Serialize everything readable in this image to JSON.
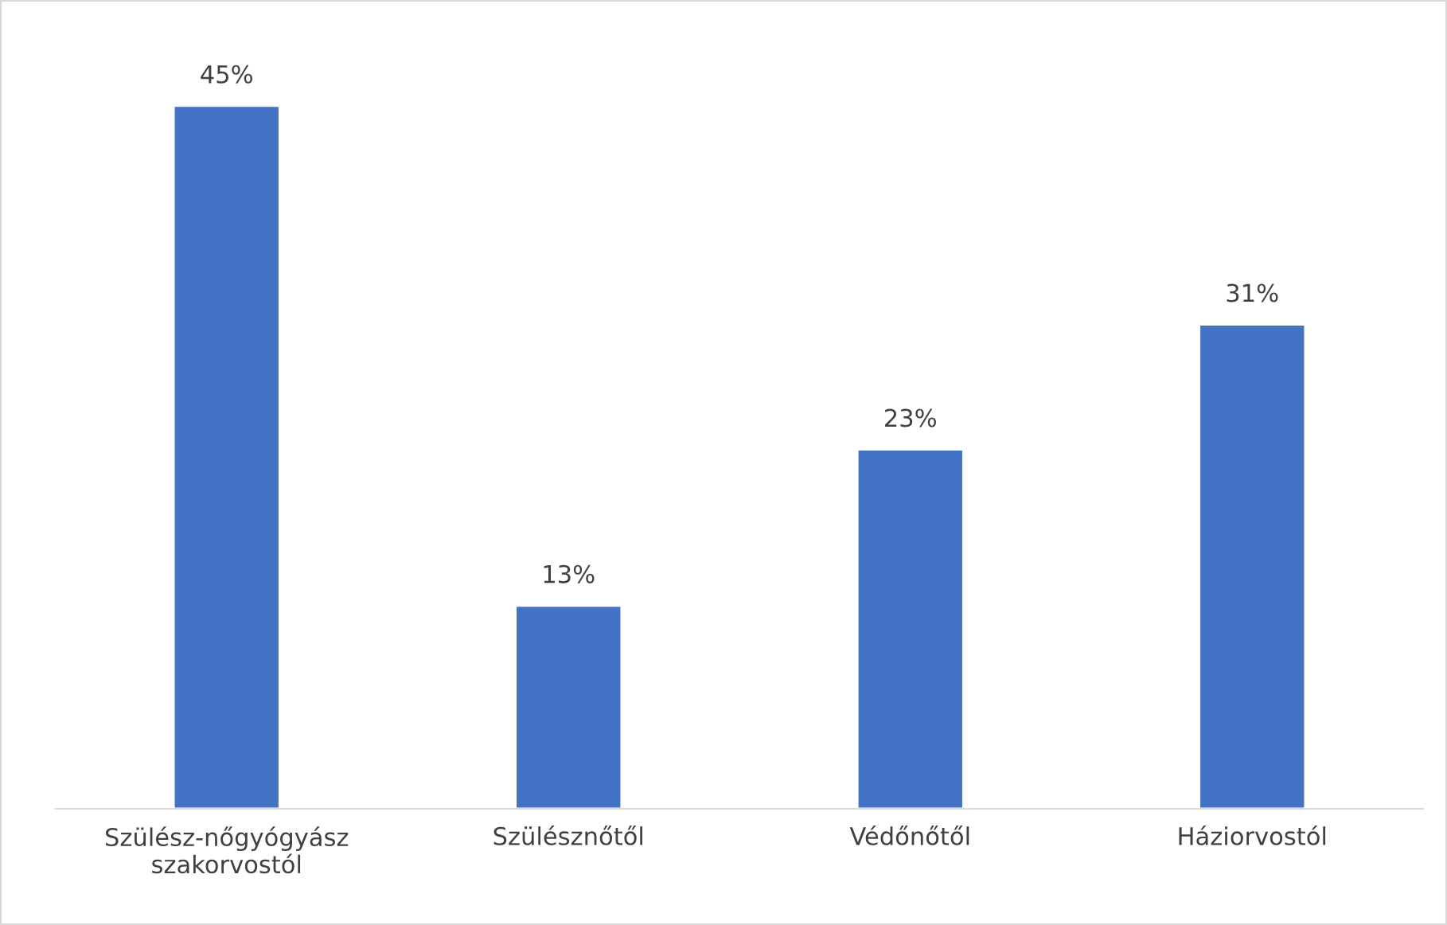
{
  "chart_data": {
    "type": "bar",
    "categories": [
      "Szülész-nőgyógyász\nszakorvostól",
      "Szülésznőtől",
      "Védőnőtől",
      "Háziorvostól"
    ],
    "values": [
      45,
      13,
      23,
      31
    ],
    "value_labels": [
      "45%",
      "13%",
      "23%",
      "31%"
    ],
    "color": "#4472c4",
    "tick_labels": "x",
    "grid": false,
    "legend": false
  }
}
